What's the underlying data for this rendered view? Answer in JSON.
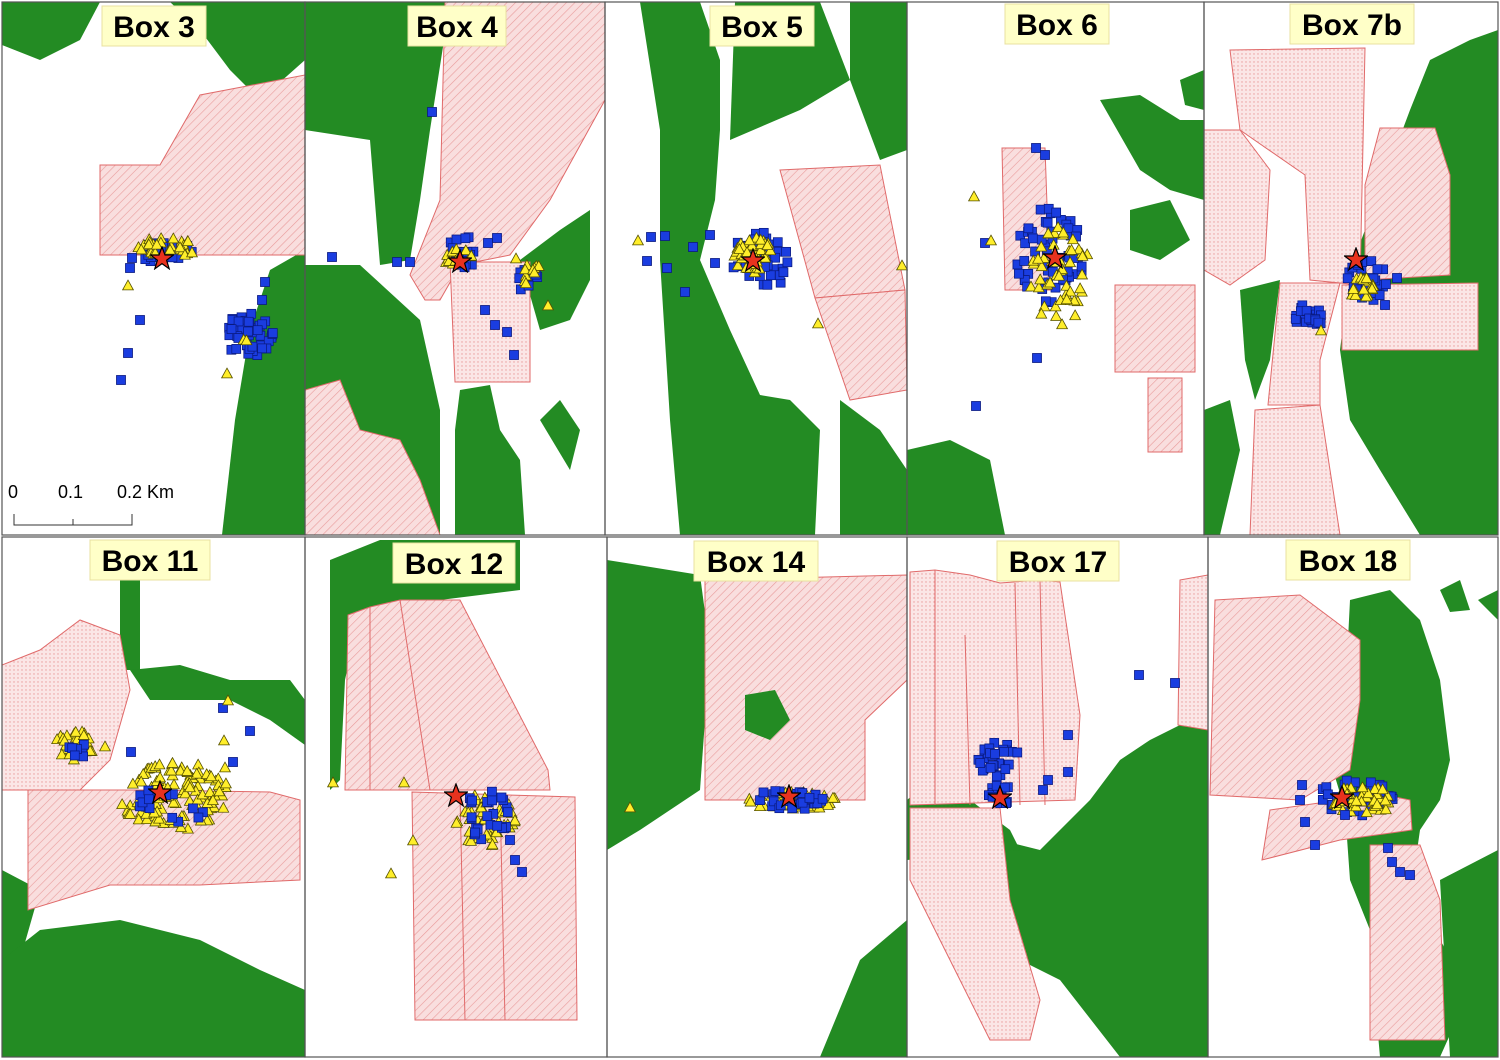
{
  "colors": {
    "forest": "#238b23",
    "parcel_fill": "#f9dede",
    "parcel_stroke": "#e06a6a",
    "square_marker": "#1a3de0",
    "triangle_marker": "#ffee2a",
    "star_marker": "#e8321e",
    "label_bg": "#ffffc8"
  },
  "scale_bar": {
    "labels": [
      "0",
      "0.1",
      "0.2 Km"
    ]
  },
  "panels": [
    {
      "id": "box3",
      "title": "Box 3"
    },
    {
      "id": "box4",
      "title": "Box 4"
    },
    {
      "id": "box5",
      "title": "Box 5"
    },
    {
      "id": "box6",
      "title": "Box 6"
    },
    {
      "id": "box7b",
      "title": "Box 7b"
    },
    {
      "id": "box11",
      "title": "Box 11"
    },
    {
      "id": "box12",
      "title": "Box 12"
    },
    {
      "id": "box14",
      "title": "Box 14"
    },
    {
      "id": "box17",
      "title": "Box 17"
    },
    {
      "id": "box18",
      "title": "Box 18"
    }
  ],
  "markers": {
    "square_icon": "blue-square-marker",
    "triangle_icon": "yellow-triangle-marker",
    "star_icon": "red-star-marker"
  }
}
